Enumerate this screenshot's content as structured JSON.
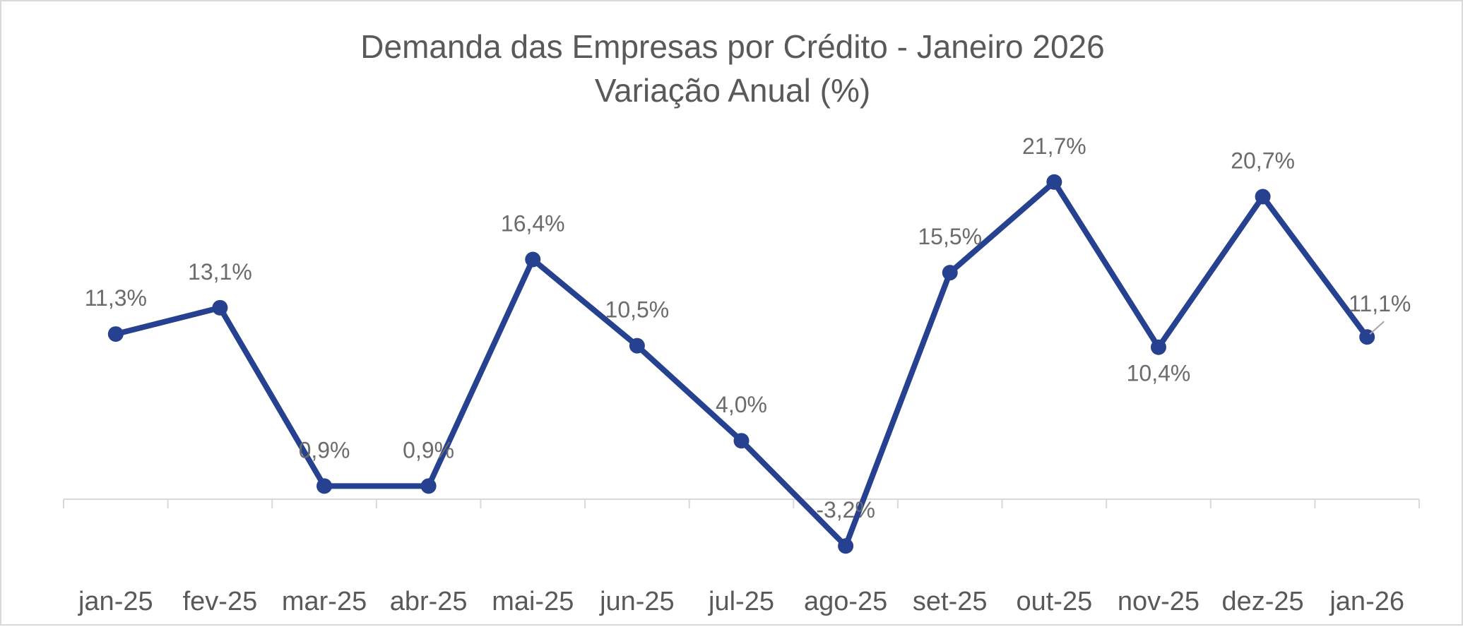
{
  "chart_data": {
    "type": "line",
    "title": [
      "Demanda das Empresas por Crédito - Janeiro 2026",
      "Variação Anual (%)"
    ],
    "xlabel": "",
    "ylabel": "",
    "categories": [
      "jan-25",
      "fev-25",
      "mar-25",
      "abr-25",
      "mai-25",
      "jun-25",
      "jul-25",
      "ago-25",
      "set-25",
      "out-25",
      "nov-25",
      "dez-25",
      "jan-26"
    ],
    "series": [
      {
        "name": "Variação Anual (%)",
        "color": "#26418f",
        "values": [
          11.3,
          13.1,
          0.9,
          0.9,
          16.4,
          10.5,
          4.0,
          -3.2,
          15.5,
          21.7,
          10.4,
          20.7,
          11.1
        ],
        "labels": [
          "11,3%",
          "13,1%",
          "0,9%",
          "0,9%",
          "16,4%",
          "10,5%",
          "4,0%",
          "-3,2%",
          "15,5%",
          "21,7%",
          "10,4%",
          "20,7%",
          "11,1%"
        ]
      }
    ],
    "ylim": [
      -5,
      25
    ],
    "grid": false,
    "legend": "none"
  }
}
